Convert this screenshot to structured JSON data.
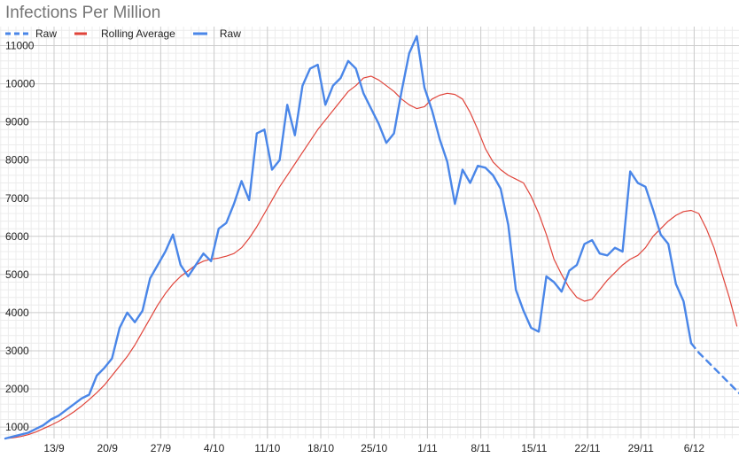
{
  "chart_data": {
    "type": "line",
    "title": "Infections Per Million",
    "ylim": [
      700,
      11500
    ],
    "y_ticks": [
      1000,
      2000,
      3000,
      4000,
      5000,
      6000,
      7000,
      8000,
      9000,
      10000,
      11000
    ],
    "x_ticks": [
      "13/9",
      "20/9",
      "27/9",
      "4/10",
      "11/10",
      "18/10",
      "25/10",
      "1/11",
      "8/11",
      "15/11",
      "22/11",
      "29/11",
      "6/12"
    ],
    "grid": true,
    "legend_position": "top-left",
    "series": [
      {
        "name": "Raw",
        "role": "projection",
        "color": "#4a86e8",
        "style": "dashed",
        "values": [
          3200,
          2950,
          2750,
          2550,
          2350,
          2150,
          1950,
          1750,
          1580,
          1440
        ]
      },
      {
        "name": "Rolling Average",
        "role": "rolling",
        "color": "#e0443a",
        "style": "solid",
        "values": [
          700,
          720,
          750,
          800,
          870,
          960,
          1050,
          1150,
          1270,
          1400,
          1550,
          1720,
          1900,
          2100,
          2350,
          2600,
          2850,
          3150,
          3500,
          3850,
          4200,
          4500,
          4750,
          4950,
          5100,
          5250,
          5350,
          5400,
          5430,
          5480,
          5550,
          5700,
          5950,
          6250,
          6600,
          6950,
          7300,
          7600,
          7900,
          8200,
          8500,
          8800,
          9050,
          9300,
          9550,
          9800,
          9950,
          10150,
          10200,
          10100,
          9950,
          9800,
          9600,
          9450,
          9350,
          9400,
          9600,
          9700,
          9750,
          9720,
          9600,
          9250,
          8800,
          8300,
          7950,
          7750,
          7600,
          7500,
          7400,
          7050,
          6600,
          6050,
          5400,
          5000,
          4650,
          4400,
          4300,
          4350,
          4600,
          4850,
          5050,
          5250,
          5400,
          5500,
          5700,
          6000,
          6200,
          6400,
          6550,
          6650,
          6680,
          6600,
          6200,
          5700,
          5050,
          4400,
          3650
        ]
      },
      {
        "name": "Raw",
        "role": "raw",
        "color": "#4a86e8",
        "style": "solid",
        "values": [
          700,
          750,
          800,
          850,
          950,
          1050,
          1200,
          1300,
          1450,
          1600,
          1750,
          1850,
          2350,
          2550,
          2800,
          3600,
          4000,
          3750,
          4050,
          4900,
          5250,
          5600,
          6050,
          5250,
          4950,
          5250,
          5550,
          5350,
          6200,
          6350,
          6850,
          7450,
          6950,
          8700,
          8800,
          7750,
          8000,
          9450,
          8650,
          9950,
          10400,
          10500,
          9450,
          9950,
          10150,
          10600,
          10400,
          9750,
          9350,
          8950,
          8450,
          8700,
          9800,
          10800,
          11250,
          9900,
          9300,
          8550,
          7950,
          6850,
          7750,
          7400,
          7850,
          7800,
          7600,
          7250,
          6300,
          4600,
          4050,
          3600,
          3500,
          4950,
          4800,
          4550,
          5100,
          5250,
          5800,
          5900,
          5550,
          5500,
          5700,
          5600,
          7700,
          7400,
          7300,
          6700,
          6050,
          5800,
          4750,
          4300,
          3200
        ]
      }
    ]
  }
}
